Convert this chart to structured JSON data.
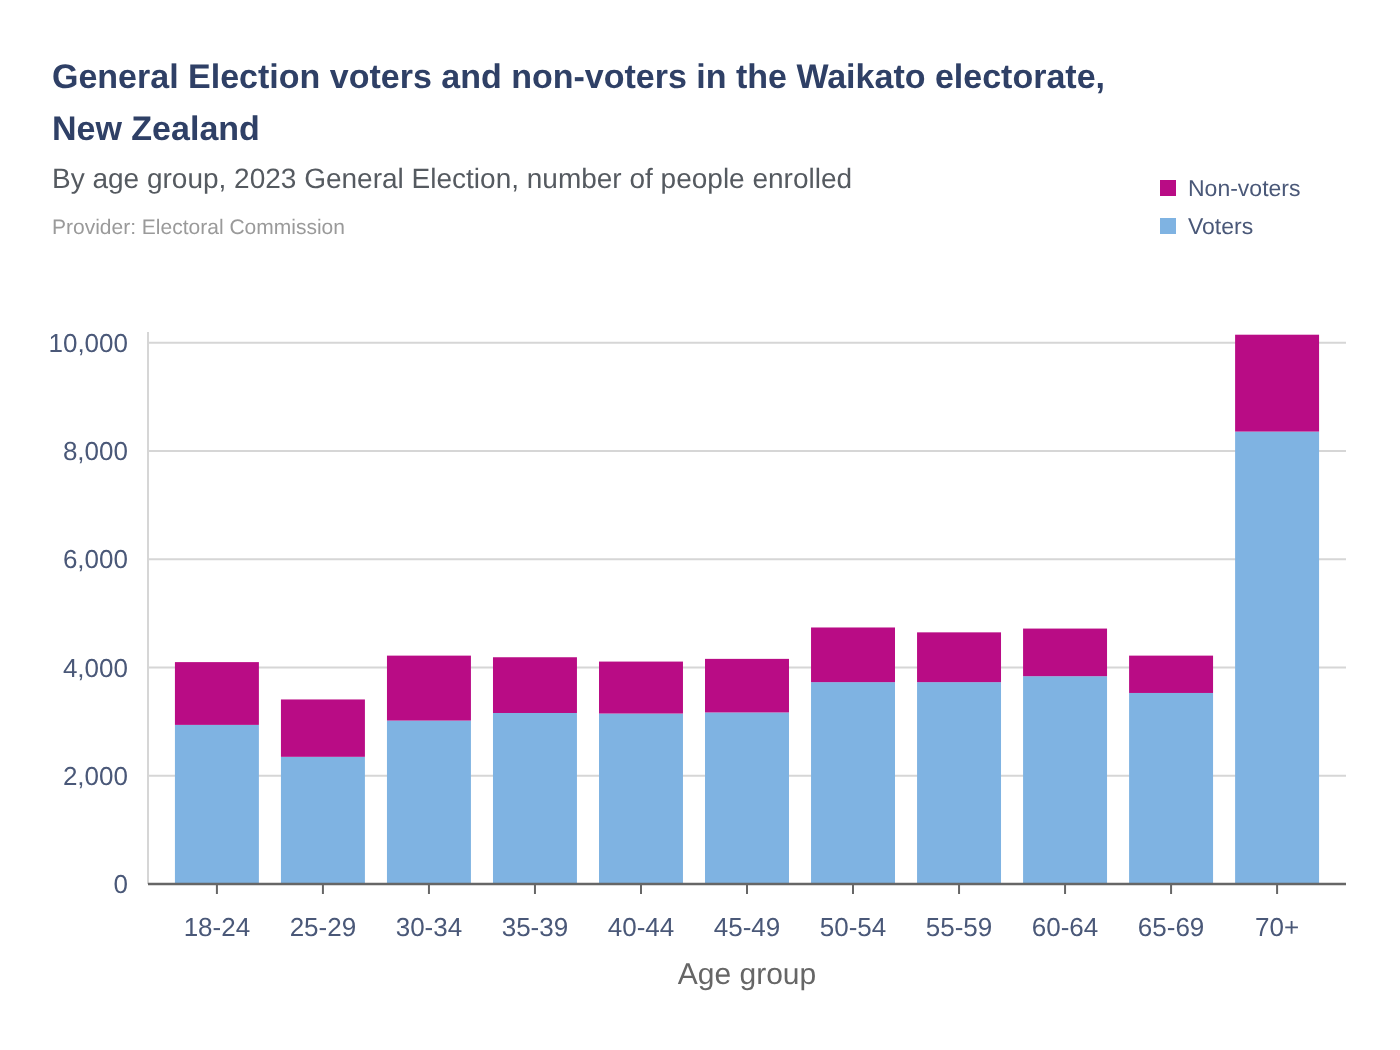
{
  "chart_data": {
    "type": "bar",
    "title": "General Election voters and non-voters in the Waikato electorate, New Zealand",
    "subtitle": "By age group, 2023 General Election, number of people enrolled",
    "annotations": [
      "Provider: Electoral Commission"
    ],
    "xlabel": "Age group",
    "categories": [
      "18-24",
      "25-29",
      "30-34",
      "35-39",
      "40-44",
      "45-49",
      "50-54",
      "55-59",
      "60-64",
      "65-69",
      "70+"
    ],
    "series": [
      {
        "name": "Voters",
        "color": "#7fb3e2",
        "values": [
          2940,
          2350,
          3020,
          3160,
          3150,
          3170,
          3730,
          3730,
          3840,
          3530,
          8360
        ]
      },
      {
        "name": "Non-voters",
        "color": "#b90c85",
        "values": [
          1160,
          1060,
          1200,
          1030,
          960,
          990,
          1010,
          920,
          880,
          690,
          1790
        ]
      }
    ],
    "stacked": true,
    "ylim": [
      0,
      10200
    ],
    "yticks": [
      0,
      {
        "value": 2000,
        "label": "2,000"
      },
      {
        "value": 4000,
        "label": "4,000"
      },
      {
        "value": 6000,
        "label": "6,000"
      },
      {
        "value": 8000,
        "label": "8,000"
      },
      {
        "value": 10000,
        "label": "10,000"
      }
    ],
    "grid": "y",
    "legend": "top right"
  }
}
